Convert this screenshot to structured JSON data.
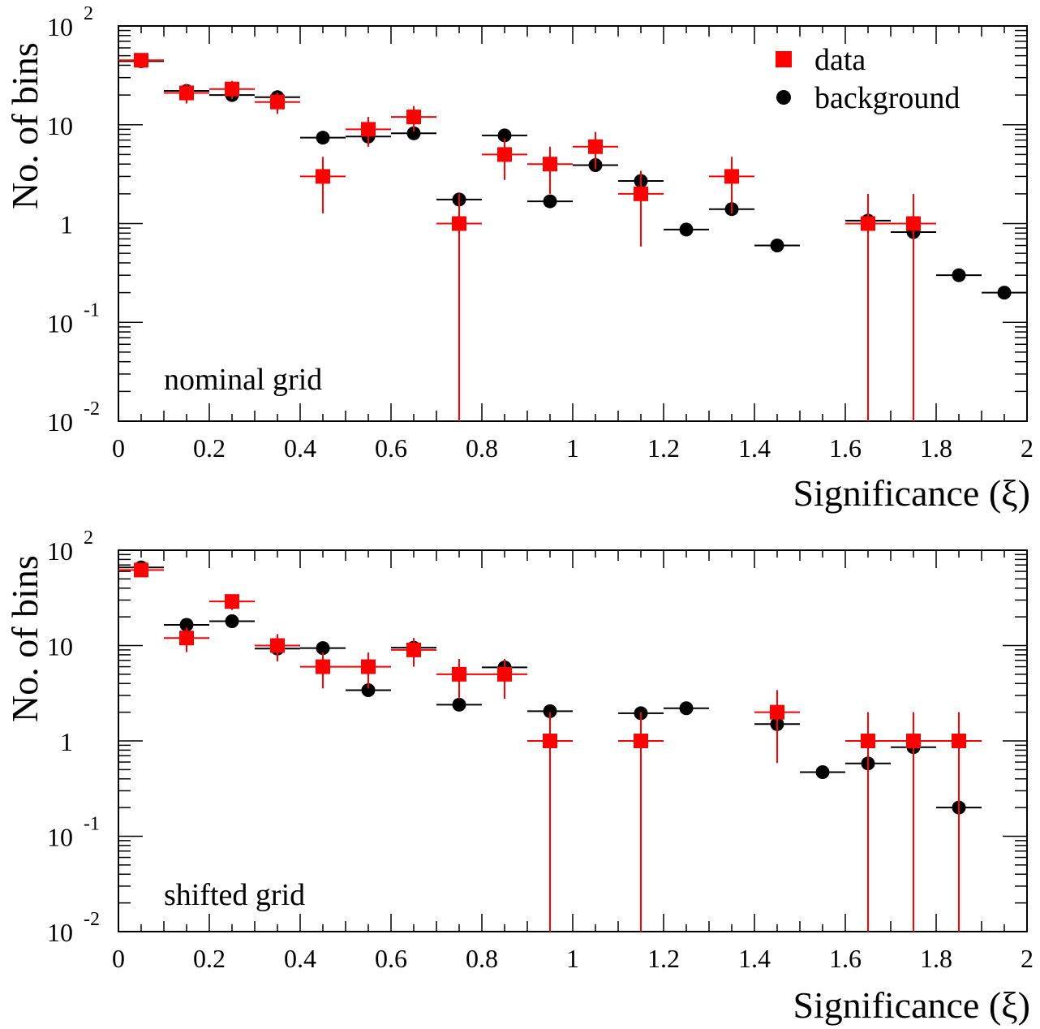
{
  "legend": {
    "data_label": "data",
    "background_label": "background",
    "data_color": "#ff0000",
    "background_color": "#000000"
  },
  "chart_data": [
    {
      "type": "scatter",
      "annotation": "nominal grid",
      "xlabel": "Significance (ξ)",
      "ylabel": "No. of bins",
      "xlim": [
        0,
        2
      ],
      "ylim": [
        0.01,
        100
      ],
      "yscale": "log",
      "x_ticks": [
        "0",
        "0.2",
        "0.4",
        "0.6",
        "0.8",
        "1",
        "1.2",
        "1.4",
        "1.6",
        "1.8",
        "2"
      ],
      "y_ticks": [
        {
          "base": "10",
          "exp": "-2"
        },
        {
          "base": "10",
          "exp": "-1"
        },
        {
          "base": "1",
          "exp": ""
        },
        {
          "base": "10",
          "exp": ""
        },
        {
          "base": "10",
          "exp": "2"
        }
      ],
      "bin_width": 0.1,
      "legend_position": "top-right",
      "series": [
        {
          "name": "data",
          "x": [
            0.05,
            0.15,
            0.25,
            0.35,
            0.45,
            0.55,
            0.65,
            0.75,
            0.85,
            0.95,
            1.05,
            1.15,
            1.35,
            1.65,
            1.75
          ],
          "values": [
            45,
            21,
            23,
            17,
            3,
            9,
            12,
            1,
            5,
            4,
            6,
            2,
            3,
            1,
            1
          ]
        },
        {
          "name": "background",
          "x": [
            0.05,
            0.15,
            0.25,
            0.35,
            0.45,
            0.55,
            0.65,
            0.75,
            0.85,
            0.95,
            1.05,
            1.15,
            1.25,
            1.35,
            1.45,
            1.65,
            1.75,
            1.85,
            1.95
          ],
          "values": [
            44,
            22,
            20,
            19,
            7.4,
            7.6,
            8.2,
            1.75,
            7.8,
            1.68,
            3.9,
            2.7,
            0.87,
            1.4,
            0.6,
            1.07,
            0.82,
            0.3,
            0.2
          ]
        }
      ]
    },
    {
      "type": "scatter",
      "annotation": "shifted grid",
      "xlabel": "Significance (ξ)",
      "ylabel": "No. of bins",
      "xlim": [
        0,
        2
      ],
      "ylim": [
        0.01,
        100
      ],
      "yscale": "log",
      "x_ticks": [
        "0",
        "0.2",
        "0.4",
        "0.6",
        "0.8",
        "1",
        "1.2",
        "1.4",
        "1.6",
        "1.8",
        "2"
      ],
      "y_ticks": [
        {
          "base": "10",
          "exp": "-2"
        },
        {
          "base": "10",
          "exp": "-1"
        },
        {
          "base": "1",
          "exp": ""
        },
        {
          "base": "10",
          "exp": ""
        },
        {
          "base": "10",
          "exp": "2"
        }
      ],
      "bin_width": 0.1,
      "series": [
        {
          "name": "data",
          "x": [
            0.05,
            0.15,
            0.25,
            0.35,
            0.45,
            0.55,
            0.65,
            0.75,
            0.85,
            0.95,
            1.15,
            1.45,
            1.65,
            1.75,
            1.85
          ],
          "values": [
            62,
            12,
            29,
            10,
            6,
            6,
            9,
            5,
            5,
            1,
            1,
            2,
            1,
            1,
            1
          ]
        },
        {
          "name": "background",
          "x": [
            0.05,
            0.15,
            0.25,
            0.35,
            0.45,
            0.55,
            0.65,
            0.75,
            0.85,
            0.95,
            1.15,
            1.25,
            1.45,
            1.55,
            1.65,
            1.75,
            1.85
          ],
          "values": [
            66,
            16.5,
            18,
            9.3,
            9.4,
            3.4,
            9.5,
            2.4,
            5.9,
            2.05,
            1.95,
            2.2,
            1.5,
            0.47,
            0.58,
            0.86,
            0.2
          ]
        }
      ]
    }
  ]
}
